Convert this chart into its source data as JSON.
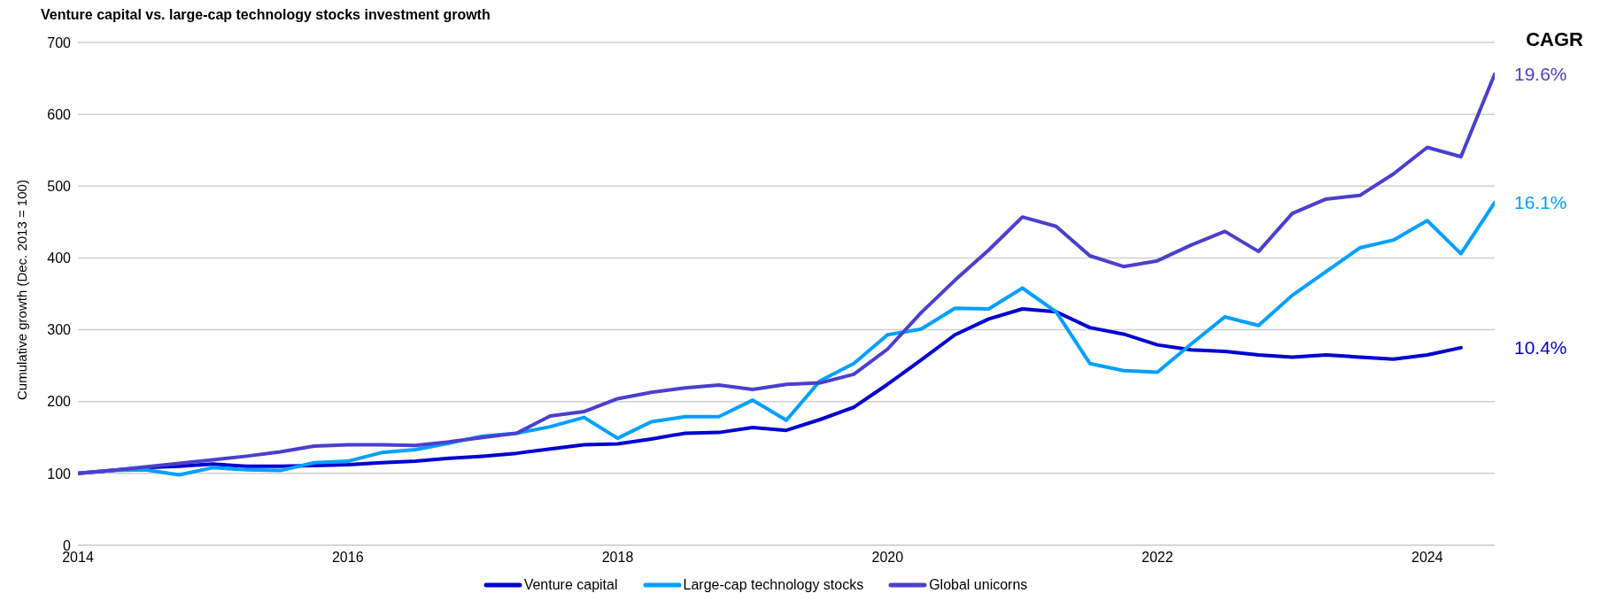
{
  "chart_data": {
    "type": "line",
    "title": "Venture capital vs. large-cap technology stocks investment growth",
    "ylabel": "Cumulative growth (Dec. 2013 = 100)",
    "x": [
      2014,
      2014.25,
      2014.5,
      2014.75,
      2015,
      2015.25,
      2015.5,
      2015.75,
      2016,
      2016.25,
      2016.5,
      2016.75,
      2017,
      2017.25,
      2017.5,
      2017.75,
      2018,
      2018.25,
      2018.5,
      2018.75,
      2019,
      2019.25,
      2019.5,
      2019.75,
      2020,
      2020.25,
      2020.5,
      2020.75,
      2021,
      2021.25,
      2021.5,
      2021.75,
      2022,
      2022.25,
      2022.5,
      2022.75,
      2023,
      2023.25,
      2023.5,
      2023.75,
      2024,
      2024.25,
      2024.5
    ],
    "series": [
      {
        "name": "Venture capital",
        "color": "#0000d0",
        "values": [
          100,
          104,
          108,
          110,
          113,
          110,
          110,
          111,
          112,
          115,
          117,
          121,
          124,
          128,
          134,
          140,
          141,
          148,
          156,
          157,
          164,
          160,
          175,
          192,
          224,
          258,
          293,
          315,
          329,
          325,
          303,
          294,
          279,
          272,
          270,
          265,
          262,
          265,
          262,
          259,
          265,
          275,
          null
        ]
      },
      {
        "name": "Large-cap technology stocks",
        "color": "#00a0ff",
        "values": [
          100,
          104,
          105,
          98,
          108,
          105,
          104,
          115,
          117,
          129,
          133,
          142,
          152,
          156,
          165,
          178,
          149,
          172,
          179,
          179,
          202,
          174,
          229,
          253,
          293,
          301,
          330,
          329,
          358,
          325,
          253,
          243,
          241,
          280,
          318,
          306,
          348,
          381,
          414,
          425,
          452,
          406,
          477
        ]
      },
      {
        "name": "Global unicorns",
        "color": "#4b3fce",
        "values": [
          100,
          104,
          109,
          114,
          119,
          124,
          130,
          138,
          140,
          140,
          139,
          144,
          150,
          156,
          180,
          186,
          204,
          213,
          219,
          223,
          217,
          224,
          226,
          238,
          273,
          324,
          369,
          411,
          457,
          444,
          403,
          388,
          396,
          418,
          437,
          409,
          462,
          482,
          487,
          517,
          554,
          541,
          656
        ]
      }
    ],
    "xlim": [
      2014,
      2024.5
    ],
    "xticks": [
      2014,
      2016,
      2018,
      2020,
      2022,
      2024
    ],
    "ylim": [
      0,
      700
    ],
    "yticks": [
      0,
      100,
      200,
      300,
      400,
      500,
      600,
      700
    ],
    "grid": "y",
    "legend": "bottom",
    "line_style": "solid",
    "marker": "none",
    "annotations": [
      "CAGR",
      "10.4%",
      "16.1%",
      "19.6%"
    ]
  }
}
